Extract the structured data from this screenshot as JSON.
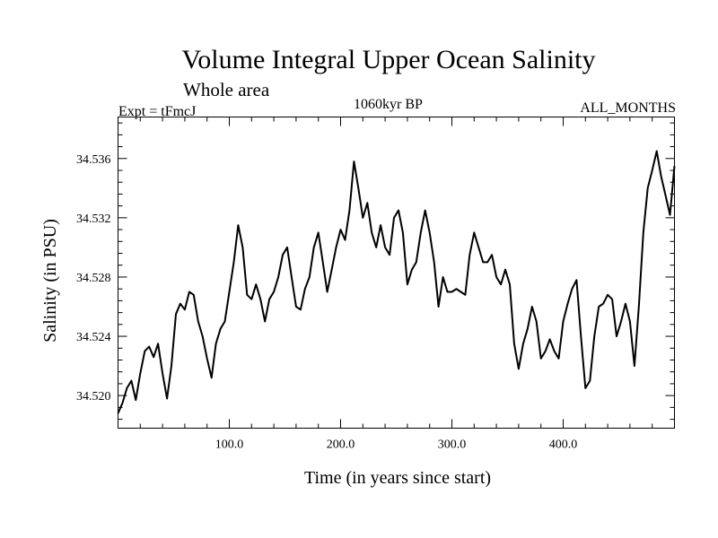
{
  "chart_data": {
    "type": "line",
    "title": "Volume Integral Upper Ocean Salinity",
    "subtitle": "Whole area",
    "left_label": "Expt = tFmcJ",
    "center_label": "1060kyr BP",
    "right_label": "ALL_MONTHS",
    "xlabel": "Time (in years since start)",
    "ylabel": "Salinity (in PSU)",
    "xlim": [
      0,
      500
    ],
    "ylim": [
      34.5178,
      34.5388
    ],
    "xticks": [
      100,
      200,
      300,
      400
    ],
    "xtick_labels": [
      "100.0",
      "200.0",
      "300.0",
      "400.0"
    ],
    "yticks": [
      34.52,
      34.524,
      34.528,
      34.532,
      34.536
    ],
    "ytick_labels": [
      "34.520",
      "34.524",
      "34.528",
      "34.532",
      "34.536"
    ],
    "series": [
      {
        "name": "Salinity",
        "x": [
          0,
          4,
          8,
          12,
          16,
          20,
          24,
          28,
          32,
          36,
          40,
          44,
          48,
          52,
          56,
          60,
          64,
          68,
          72,
          76,
          80,
          84,
          88,
          92,
          96,
          100,
          104,
          108,
          112,
          116,
          120,
          124,
          128,
          132,
          136,
          140,
          144,
          148,
          152,
          156,
          160,
          164,
          168,
          172,
          176,
          180,
          184,
          188,
          192,
          196,
          200,
          204,
          208,
          212,
          216,
          220,
          224,
          228,
          232,
          236,
          240,
          244,
          248,
          252,
          256,
          260,
          264,
          268,
          272,
          276,
          280,
          284,
          288,
          292,
          296,
          300,
          304,
          308,
          312,
          316,
          320,
          324,
          328,
          332,
          336,
          340,
          344,
          348,
          352,
          356,
          360,
          364,
          368,
          372,
          376,
          380,
          384,
          388,
          392,
          396,
          400,
          404,
          408,
          412,
          416,
          420,
          424,
          428,
          432,
          436,
          440,
          444,
          448,
          452,
          456,
          460,
          464,
          468,
          472,
          476,
          480,
          484,
          488,
          492,
          496,
          500
        ],
        "values": [
          34.5188,
          34.5195,
          34.5205,
          34.521,
          34.5197,
          34.5215,
          34.523,
          34.5233,
          34.5226,
          34.5235,
          34.5215,
          34.5198,
          34.522,
          34.5255,
          34.5262,
          34.5258,
          34.527,
          34.5268,
          34.525,
          34.524,
          34.5225,
          34.5212,
          34.5235,
          34.5245,
          34.525,
          34.527,
          34.529,
          34.5315,
          34.53,
          34.5268,
          34.5265,
          34.5275,
          34.5265,
          34.525,
          34.5265,
          34.527,
          34.528,
          34.5295,
          34.53,
          34.528,
          34.526,
          34.5258,
          34.5272,
          34.528,
          34.53,
          34.531,
          34.529,
          34.527,
          34.5285,
          34.53,
          34.5312,
          34.5305,
          34.5325,
          34.5358,
          34.534,
          34.532,
          34.533,
          34.531,
          34.53,
          34.5315,
          34.53,
          34.5295,
          34.532,
          34.5325,
          34.531,
          34.5275,
          34.5285,
          34.529,
          34.531,
          34.5325,
          34.531,
          34.529,
          34.526,
          34.528,
          34.527,
          34.527,
          34.5272,
          34.527,
          34.5268,
          34.5295,
          34.531,
          34.53,
          34.529,
          34.529,
          34.5295,
          34.528,
          34.5275,
          34.5285,
          34.5275,
          34.5235,
          34.5218,
          34.5235,
          34.5245,
          34.526,
          34.525,
          34.5225,
          34.523,
          34.5238,
          34.523,
          34.5225,
          34.525,
          34.5262,
          34.5272,
          34.5278,
          34.524,
          34.5205,
          34.521,
          34.524,
          34.526,
          34.5262,
          34.5268,
          34.5265,
          34.524,
          34.525,
          34.5262,
          34.525,
          34.522,
          34.526,
          34.531,
          34.534,
          34.5352,
          34.5365,
          34.5348,
          34.5335,
          34.5322,
          34.5355
        ]
      }
    ]
  }
}
